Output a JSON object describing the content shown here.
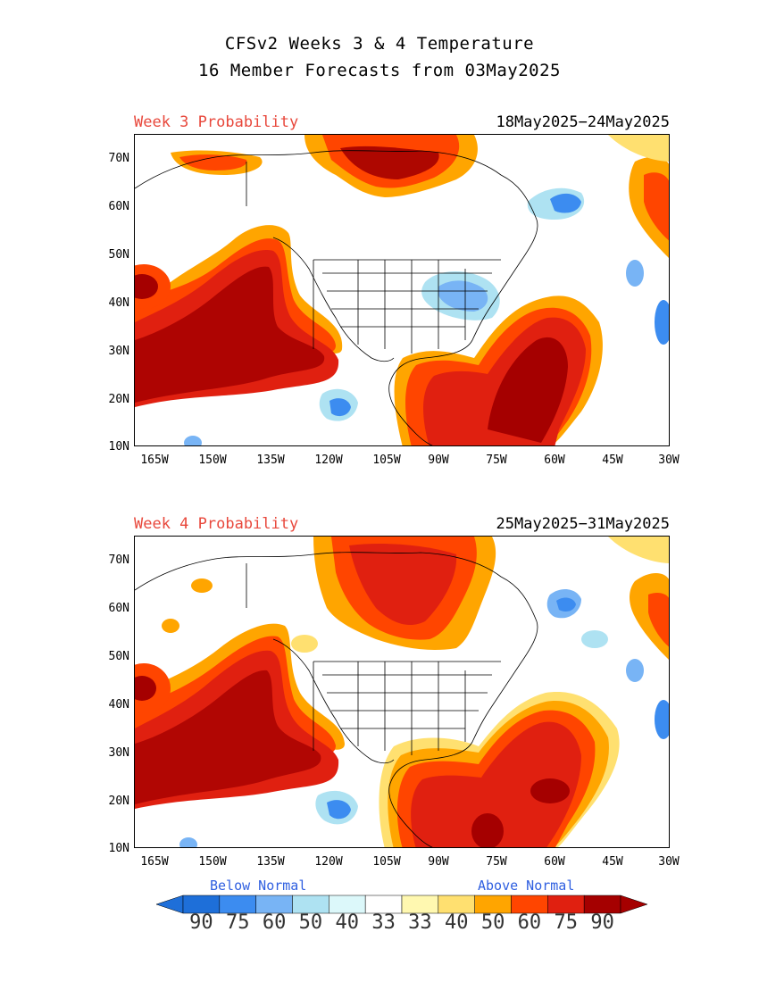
{
  "title_line1": "CFSv2 Weeks 3 & 4 Temperature",
  "title_line2": "16 Member Forecasts from 03May2025",
  "panels": [
    {
      "label": "Week 3 Probability",
      "dates": "18May2025−24May2025"
    },
    {
      "label": "Week 4 Probability",
      "dates": "25May2025−31May2025"
    }
  ],
  "lat_ticks": [
    "70N",
    "60N",
    "50N",
    "40N",
    "30N",
    "20N",
    "10N"
  ],
  "lon_ticks": [
    "165W",
    "150W",
    "135W",
    "120W",
    "105W",
    "90W",
    "75W",
    "60W",
    "45W",
    "30W"
  ],
  "legend": {
    "below_label": "Below Normal",
    "above_label": "Above Normal",
    "values": [
      "90",
      "75",
      "60",
      "50",
      "40",
      "33",
      "33",
      "40",
      "50",
      "60",
      "75",
      "90"
    ],
    "colors": [
      "#1e6fd9",
      "#3c8cf0",
      "#78b4f5",
      "#aee2f2",
      "#dcf8fa",
      "#ffffff",
      "#fff8b0",
      "#ffe070",
      "#ffa500",
      "#ff4500",
      "#e02010",
      "#a50000"
    ]
  }
}
